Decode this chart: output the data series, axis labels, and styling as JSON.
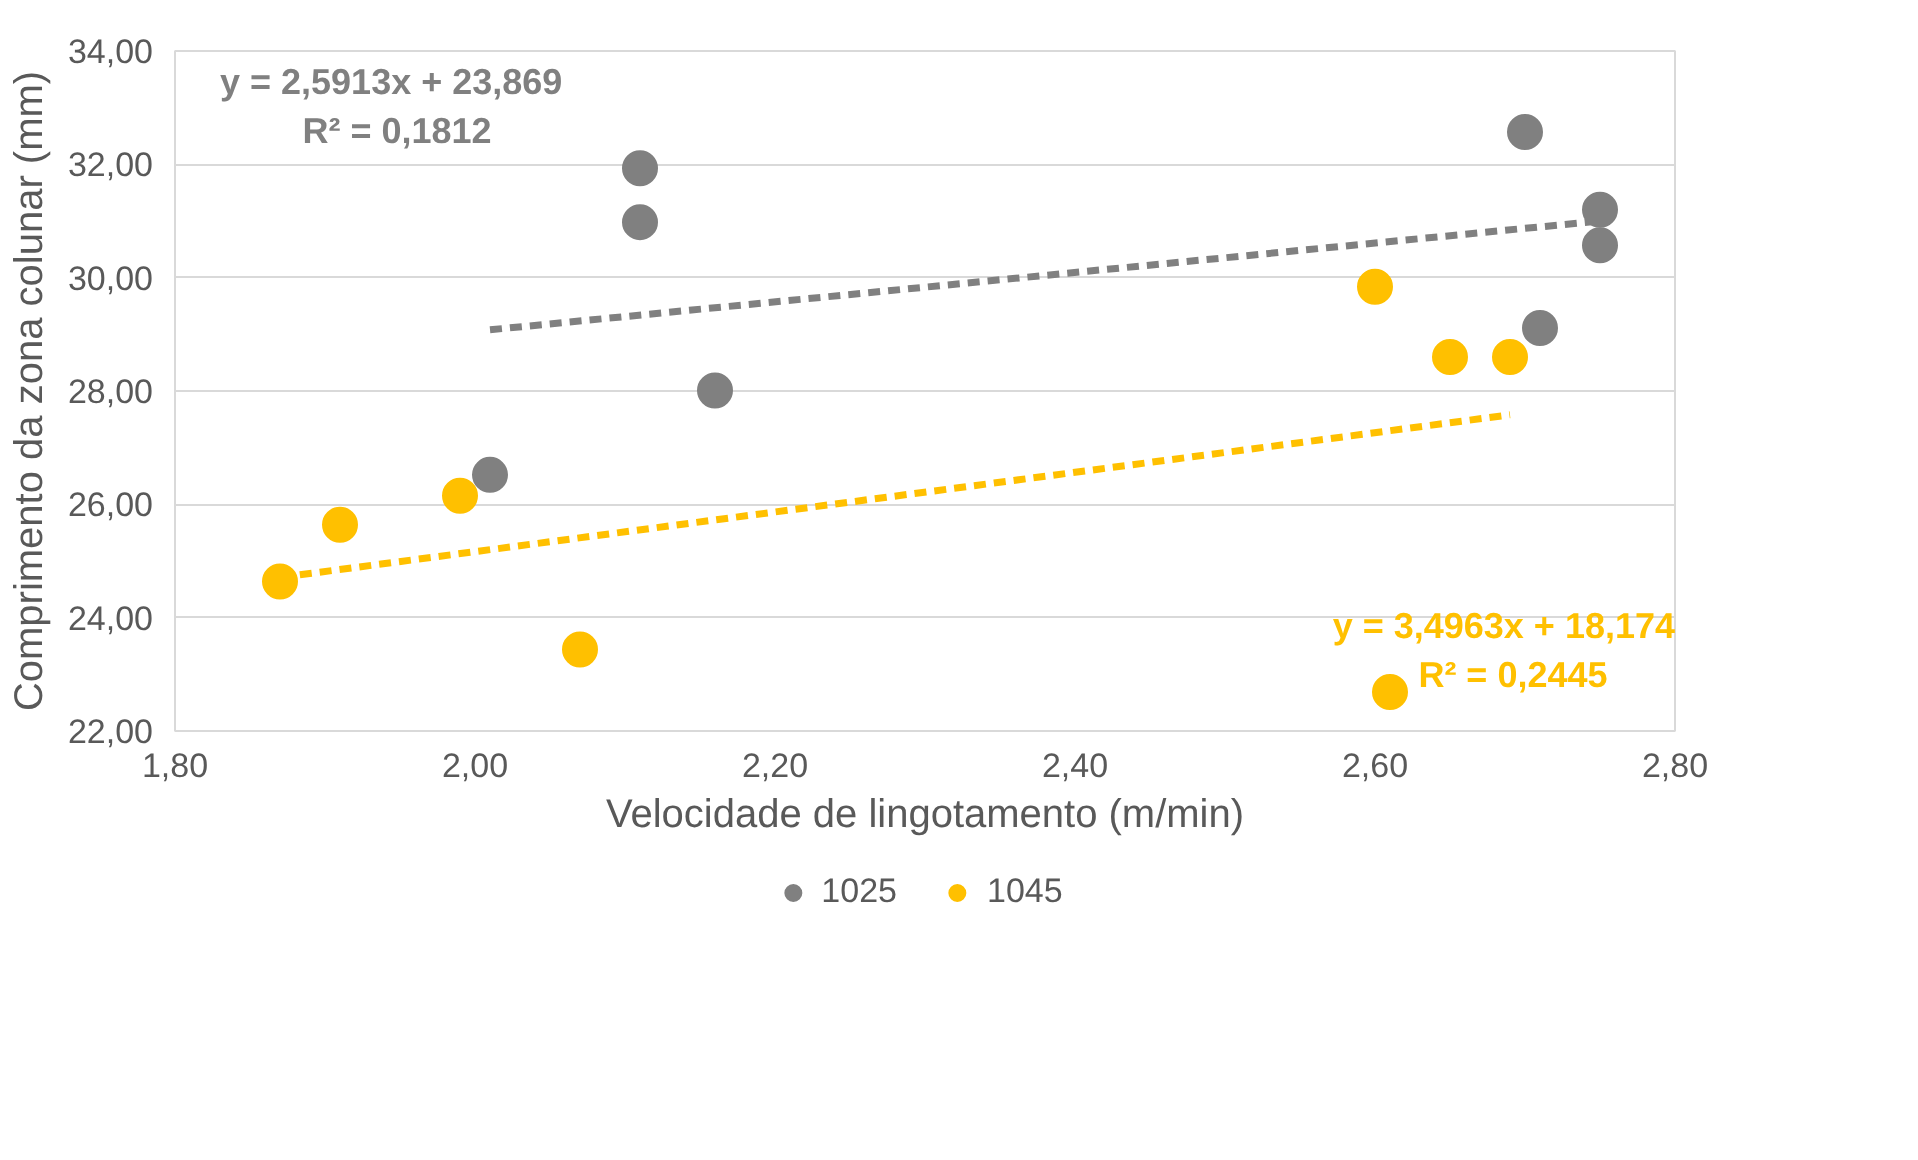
{
  "chart_data": {
    "type": "scatter",
    "xlabel": "Velocidade de lingotamento (m/min)",
    "ylabel": "Comprimento da zona colunar (mm)",
    "xlim": [
      1.8,
      2.8
    ],
    "xticks": [
      {
        "value": 1.8,
        "label": "1,80"
      },
      {
        "value": 2.0,
        "label": "2,00"
      },
      {
        "value": 2.2,
        "label": "2,20"
      },
      {
        "value": 2.4,
        "label": "2,40"
      },
      {
        "value": 2.6,
        "label": "2,60"
      },
      {
        "value": 2.8,
        "label": "2,80"
      }
    ],
    "ylim": [
      22,
      34
    ],
    "yticks": [
      {
        "value": 22,
        "label": "22,00"
      },
      {
        "value": 24,
        "label": "24,00"
      },
      {
        "value": 26,
        "label": "26,00"
      },
      {
        "value": 28,
        "label": "28,00"
      },
      {
        "value": 30,
        "label": "30,00"
      },
      {
        "value": 32,
        "label": "32,00"
      },
      {
        "value": 34,
        "label": "34,00"
      }
    ],
    "grid": "y",
    "legend": "bottom",
    "series": [
      {
        "name": "1025",
        "marker": "circle",
        "color": "#808080",
        "x": [
          2.11,
          2.11,
          2.16,
          2.01,
          2.7,
          2.75,
          2.75,
          2.71
        ],
        "values": [
          31.93,
          30.98,
          28.01,
          26.52,
          32.57,
          31.2,
          30.57,
          29.11
        ]
      },
      {
        "name": "1045",
        "marker": "circle",
        "color": "#ffc000",
        "x": [
          1.87,
          1.91,
          1.99,
          2.07,
          2.6,
          2.65,
          2.69,
          2.61
        ],
        "values": [
          24.64,
          25.64,
          26.15,
          23.44,
          29.84,
          28.6,
          28.6,
          22.69
        ]
      },
      {
        "type": "line",
        "line_style": "dashed",
        "color": "#808080",
        "x": [
          2.01,
          2.75
        ],
        "values": [
          29.08,
          31.0
        ]
      },
      {
        "type": "line",
        "line_style": "dashed",
        "color": "#ffc000",
        "x": [
          1.87,
          2.69
        ],
        "values": [
          24.71,
          27.58
        ]
      }
    ],
    "annotations": [
      "y = 2,5913x + 23,869\nR² = 0,1812",
      "y = 3,4963x + 18,174\nR² = 0,2445"
    ]
  }
}
